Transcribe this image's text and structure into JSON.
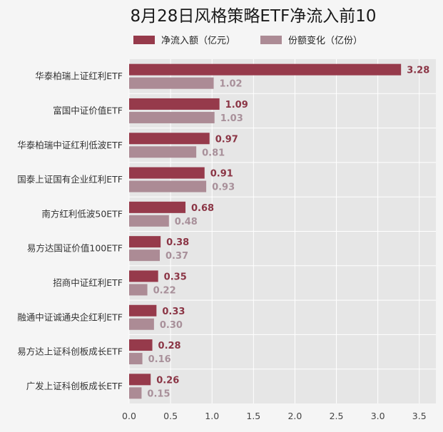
{
  "chart_data": {
    "type": "bar",
    "orientation": "horizontal",
    "title": "8月28日风格策略ETF净流入前10",
    "categories": [
      "华泰柏瑞上证红利ETF",
      "富国中证价值ETF",
      "华泰柏瑞中证红利低波ETF",
      "国泰上证国有企业红利ETF",
      "南方红利低波50ETF",
      "易方达国证价值100ETF",
      "招商中证红利ETF",
      "融通中证诚通央企红利ETF",
      "易方达上证科创板成长ETF",
      "广发上证科创板成长ETF"
    ],
    "series": [
      {
        "name": "净流入额（亿元）",
        "color": "#963a4b",
        "values": [
          3.28,
          1.09,
          0.97,
          0.91,
          0.68,
          0.38,
          0.35,
          0.33,
          0.28,
          0.26
        ],
        "labels": [
          "3.28",
          "1.09",
          "0.97",
          "0.91",
          "0.68",
          "0.38",
          "0.35",
          "0.33",
          "0.28",
          "0.26"
        ]
      },
      {
        "name": "份额变化（亿份）",
        "color": "#ac8b95",
        "values": [
          1.02,
          1.03,
          0.81,
          0.93,
          0.48,
          0.37,
          0.22,
          0.3,
          0.16,
          0.15
        ],
        "labels": [
          "1.02",
          "1.03",
          "0.81",
          "0.93",
          "0.48",
          "0.37",
          "0.22",
          "0.30",
          "0.16",
          "0.15"
        ]
      }
    ],
    "xlim": [
      0,
      3.7
    ],
    "xticks": [
      "0.0",
      "0.5",
      "1.0",
      "1.5",
      "2.0",
      "2.5",
      "3.0",
      "3.5"
    ],
    "grid": true,
    "legend_position": "top",
    "colors": {
      "plot_background": "#e6e6e6",
      "page_background": "#f5f5f5"
    }
  }
}
